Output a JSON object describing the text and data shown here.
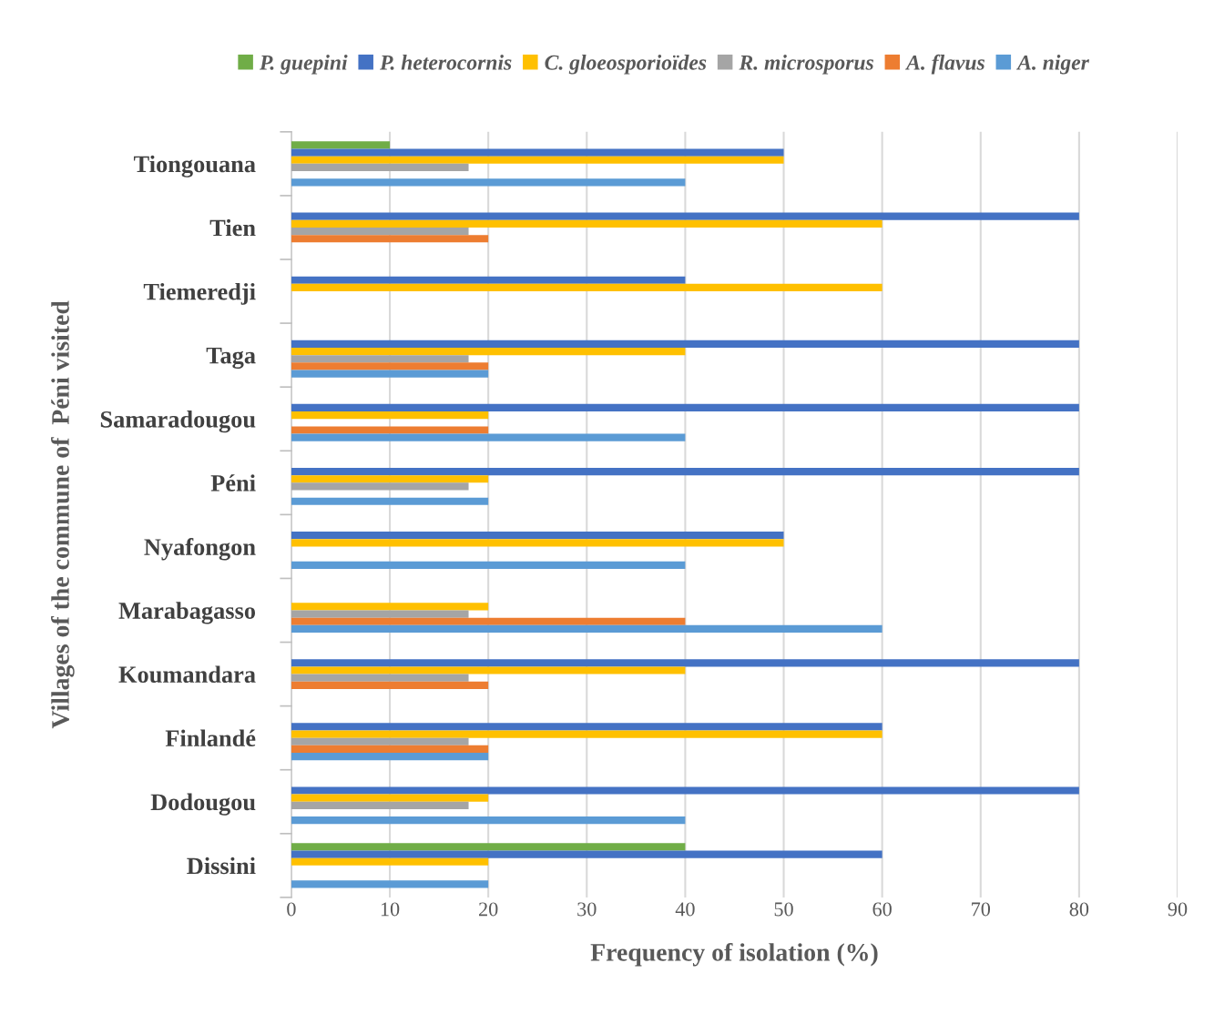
{
  "chart_data": {
    "type": "bar",
    "orientation": "horizontal",
    "xlabel": "Frequency of isolation (%)",
    "ylabel": "Villages of the commune of  Péni visited",
    "categories": [
      "Tiongouana",
      "Tien",
      "Tiemeredji",
      "Taga",
      "Samaradougou",
      "Péni",
      "Nyafongon",
      "Marabagasso",
      "Koumandara",
      "Finlandé",
      "Dodougou",
      "Dissini"
    ],
    "series": [
      {
        "name": "P. guepini",
        "color": "#70ad47",
        "values": [
          10,
          null,
          null,
          null,
          null,
          null,
          null,
          null,
          null,
          null,
          null,
          40
        ]
      },
      {
        "name": "P. heterocornis",
        "color": "#4472c4",
        "values": [
          50,
          80,
          40,
          80,
          80,
          80,
          50,
          null,
          80,
          60,
          80,
          60
        ]
      },
      {
        "name": "C. gloeosporioïdes",
        "color": "#ffc000",
        "values": [
          50,
          60,
          60,
          40,
          20,
          20,
          50,
          20,
          40,
          60,
          20,
          20
        ]
      },
      {
        "name": "R. microsporus",
        "color": "#a5a5a5",
        "values": [
          18,
          18,
          null,
          18,
          null,
          18,
          null,
          18,
          18,
          18,
          18,
          null
        ]
      },
      {
        "name": "A. flavus",
        "color": "#ed7d31",
        "values": [
          null,
          20,
          null,
          20,
          20,
          null,
          null,
          40,
          20,
          20,
          null,
          null
        ]
      },
      {
        "name": "A. niger",
        "color": "#5b9bd5",
        "values": [
          40,
          null,
          null,
          20,
          40,
          20,
          40,
          60,
          null,
          20,
          40,
          20
        ]
      }
    ],
    "xlim": [
      0,
      90
    ],
    "xticks": [
      0,
      10,
      20,
      30,
      40,
      50,
      60,
      70,
      80,
      90
    ],
    "grid": "x",
    "legend": "top"
  }
}
